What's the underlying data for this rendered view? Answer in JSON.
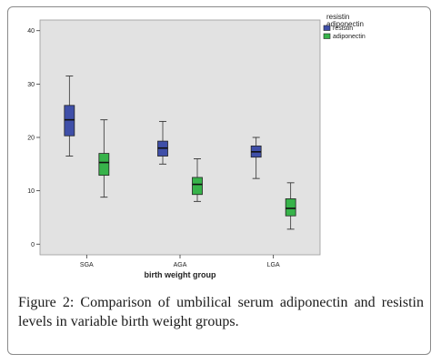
{
  "chart_data": {
    "type": "boxplot",
    "xlabel": "birth weight group",
    "ylabel": "",
    "ylim": [
      -2,
      42
    ],
    "yticks": [
      0,
      10,
      20,
      30,
      40
    ],
    "categories": [
      "SGA",
      "AGA",
      "LGA"
    ],
    "legend": {
      "title_lines": [
        "resistin",
        "adiponectin"
      ],
      "placement": "top-right-outside"
    },
    "series": [
      {
        "name": "resistin",
        "color": "#3f4fa8",
        "boxes": [
          {
            "category": "SGA",
            "min": 16.5,
            "q1": 20.3,
            "median": 23.3,
            "q3": 26.0,
            "max": 31.5
          },
          {
            "category": "AGA",
            "min": 15.0,
            "q1": 16.5,
            "median": 18.0,
            "q3": 19.3,
            "max": 23.0
          },
          {
            "category": "LGA",
            "min": 12.3,
            "q1": 16.3,
            "median": 17.3,
            "q3": 18.4,
            "max": 20.0
          }
        ]
      },
      {
        "name": "adiponectin",
        "color": "#37b34a",
        "boxes": [
          {
            "category": "SGA",
            "min": 8.8,
            "q1": 12.9,
            "median": 15.3,
            "q3": 17.0,
            "max": 23.3
          },
          {
            "category": "AGA",
            "min": 8.0,
            "q1": 9.3,
            "median": 11.2,
            "q3": 12.5,
            "max": 16.0
          },
          {
            "category": "LGA",
            "min": 2.8,
            "q1": 5.3,
            "median": 6.7,
            "q3": 8.5,
            "max": 11.5
          }
        ]
      }
    ],
    "plot_background": "#e2e2e2",
    "grid": false
  },
  "caption": {
    "figure_label": "Figure 2:",
    "text": " Comparison of umbilical serum adiponectin and resistin levels in variable birth weight groups."
  }
}
